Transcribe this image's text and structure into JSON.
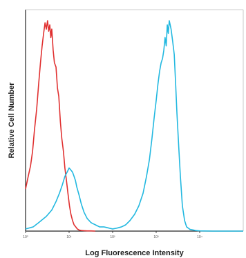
{
  "chart_data": {
    "type": "line",
    "title": "",
    "xlabel": "Log Fluorescence Intensity",
    "ylabel": "Relative Cell Number",
    "xscale": "log",
    "xlim": [
      1,
      100000
    ],
    "ylim": [
      0,
      100
    ],
    "x_ticks": [
      1,
      10,
      100,
      1000,
      10000
    ],
    "x_tick_labels": [
      "10⁰",
      "10¹",
      "10²",
      "10³",
      "10⁴"
    ],
    "grid": false,
    "legend": "none",
    "series": [
      {
        "color": "#e03030",
        "x": [
          1,
          1.15,
          1.3,
          1.45,
          1.6,
          1.8,
          2.0,
          2.2,
          2.4,
          2.6,
          2.8,
          3.0,
          3.2,
          3.4,
          3.6,
          3.8,
          4.0,
          4.3,
          4.6,
          5.0,
          5.4,
          5.8,
          6.3,
          6.8,
          7.4,
          8.0,
          8.7,
          9.4,
          10.2,
          11.0,
          12.0,
          13.0,
          14.2,
          15.5,
          17.0,
          19.0,
          22.0,
          26.0,
          32.0,
          40.0
        ],
        "y": [
          20,
          26,
          31,
          38,
          48,
          58,
          70,
          80,
          88,
          94,
          99,
          96,
          100,
          95,
          98,
          92,
          96,
          86,
          80,
          78,
          68,
          64,
          52,
          44,
          38,
          30,
          24,
          18,
          12,
          8,
          5,
          3,
          2,
          1,
          0.5,
          0.3,
          0.2,
          0.1,
          0.1,
          0
        ]
      },
      {
        "color": "#22b8e0",
        "x": [
          1,
          1.5,
          2,
          3,
          4,
          5,
          6,
          7,
          8,
          9,
          10,
          11,
          12,
          13,
          14,
          15,
          17,
          19,
          22,
          26,
          32,
          40,
          50,
          63,
          80,
          100,
          130,
          160,
          200,
          250,
          320,
          400,
          500,
          600,
          700,
          800,
          900,
          1000,
          1100,
          1200,
          1300,
          1400,
          1500,
          1600,
          1700,
          1800,
          1900,
          2000,
          2200,
          2400,
          2600,
          2800,
          3000,
          3300,
          3600,
          4000,
          4500,
          5000,
          6000,
          8000,
          10000,
          20000,
          50000,
          100000
        ],
        "y": [
          1,
          2,
          4,
          7,
          10,
          14,
          18,
          22,
          26,
          28,
          30,
          29,
          28,
          26,
          24,
          21,
          17,
          13,
          9,
          6,
          4,
          3,
          2,
          2,
          1.5,
          1,
          1.5,
          2,
          3,
          5,
          8,
          12,
          18,
          26,
          34,
          44,
          54,
          62,
          70,
          76,
          80,
          82,
          86,
          92,
          88,
          98,
          94,
          100,
          96,
          90,
          84,
          70,
          56,
          40,
          26,
          12,
          5,
          2,
          0.8,
          0.3,
          0.1,
          0,
          0,
          0
        ]
      }
    ]
  }
}
